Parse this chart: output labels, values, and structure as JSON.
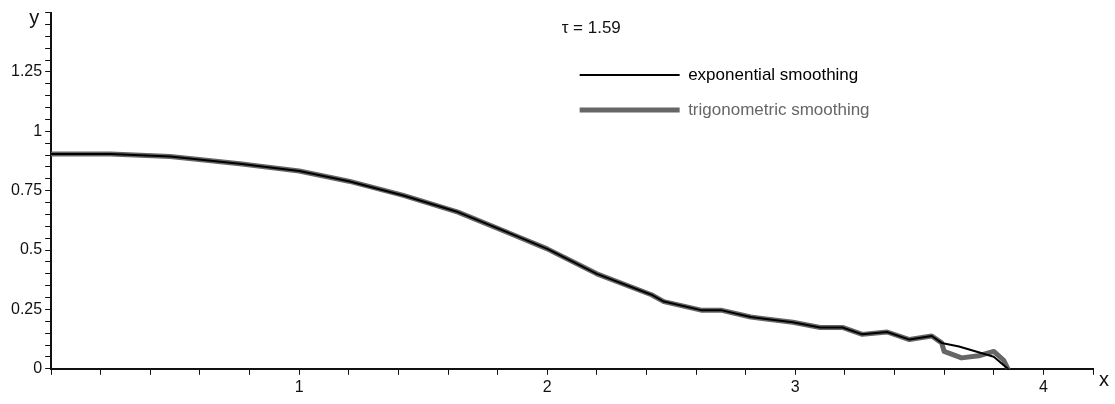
{
  "chart_data": {
    "type": "line",
    "xlabel": "x",
    "ylabel": "y",
    "legend_title": "τ = 1.59",
    "legend": "top right",
    "grid": false,
    "marker": "none",
    "line_style": "solid",
    "xlim": [
      0,
      4.2
    ],
    "ylim": [
      0,
      1.5
    ],
    "xticks": [
      {
        "value": 0,
        "label": null
      },
      {
        "value": 0.2,
        "label": null
      },
      {
        "value": 0.4,
        "label": null
      },
      {
        "value": 0.6,
        "label": null
      },
      {
        "value": 0.8,
        "label": null
      },
      1,
      {
        "value": 1.2,
        "label": null
      },
      {
        "value": 1.4,
        "label": null
      },
      {
        "value": 1.6,
        "label": null
      },
      {
        "value": 1.8,
        "label": null
      },
      2,
      {
        "value": 2.2,
        "label": null
      },
      {
        "value": 2.4,
        "label": null
      },
      {
        "value": 2.6,
        "label": null
      },
      {
        "value": 2.8,
        "label": null
      },
      3,
      {
        "value": 3.2,
        "label": null
      },
      {
        "value": 3.4,
        "label": null
      },
      {
        "value": 3.6,
        "label": null
      },
      {
        "value": 3.8,
        "label": null
      },
      4,
      {
        "value": 4.2,
        "label": null
      }
    ],
    "yticks": [
      0,
      {
        "value": 0.05,
        "label": null
      },
      {
        "value": 0.1,
        "label": null
      },
      {
        "value": 0.15,
        "label": null
      },
      {
        "value": 0.2,
        "label": null
      },
      0.25,
      {
        "value": 0.3,
        "label": null
      },
      {
        "value": 0.35,
        "label": null
      },
      {
        "value": 0.4,
        "label": null
      },
      {
        "value": 0.45,
        "label": null
      },
      0.5,
      {
        "value": 0.55,
        "label": null
      },
      {
        "value": 0.6,
        "label": null
      },
      {
        "value": 0.65,
        "label": null
      },
      {
        "value": 0.7,
        "label": null
      },
      0.75,
      {
        "value": 0.8,
        "label": null
      },
      {
        "value": 0.85,
        "label": null
      },
      {
        "value": 0.9,
        "label": null
      },
      {
        "value": 0.95,
        "label": null
      },
      1,
      {
        "value": 1.05,
        "label": null
      },
      {
        "value": 1.1,
        "label": null
      },
      {
        "value": 1.15,
        "label": null
      },
      {
        "value": 1.2,
        "label": null
      },
      1.25,
      {
        "value": 1.3,
        "label": null
      },
      {
        "value": 1.35,
        "label": null
      },
      {
        "value": 1.4,
        "label": null
      },
      {
        "value": 1.45,
        "label": null
      },
      {
        "value": 1.5,
        "label": null
      }
    ],
    "series": [
      {
        "name": "trigonometric smoothing",
        "color": "#666666",
        "x": [
          0,
          0.24,
          0.48,
          0.77,
          1.0,
          1.2,
          1.42,
          1.64,
          1.85,
          2.0,
          2.2,
          2.42,
          2.47,
          2.62,
          2.7,
          2.82,
          2.99,
          3.1,
          3.19,
          3.27,
          3.37,
          3.46,
          3.55,
          3.59,
          3.6,
          3.67,
          3.74,
          3.8,
          3.84,
          3.857
        ],
        "values": [
          0.905,
          0.905,
          0.894,
          0.862,
          0.833,
          0.79,
          0.73,
          0.66,
          0.57,
          0.505,
          0.4,
          0.312,
          0.283,
          0.247,
          0.247,
          0.218,
          0.196,
          0.174,
          0.174,
          0.145,
          0.155,
          0.123,
          0.138,
          0.109,
          0.073,
          0.046,
          0.055,
          0.073,
          0.036,
          0
        ]
      },
      {
        "name": "exponential smoothing",
        "color": "#000000",
        "x": [
          0,
          0.24,
          0.48,
          0.77,
          1.0,
          1.2,
          1.42,
          1.64,
          1.85,
          2.0,
          2.2,
          2.42,
          2.47,
          2.62,
          2.7,
          2.82,
          2.99,
          3.1,
          3.19,
          3.27,
          3.37,
          3.46,
          3.55,
          3.59,
          3.66,
          3.8,
          3.857
        ],
        "values": [
          0.905,
          0.905,
          0.894,
          0.862,
          0.833,
          0.79,
          0.73,
          0.66,
          0.57,
          0.505,
          0.4,
          0.312,
          0.283,
          0.247,
          0.247,
          0.218,
          0.196,
          0.174,
          0.174,
          0.145,
          0.155,
          0.123,
          0.138,
          0.109,
          0.094,
          0.051,
          0
        ]
      }
    ]
  }
}
